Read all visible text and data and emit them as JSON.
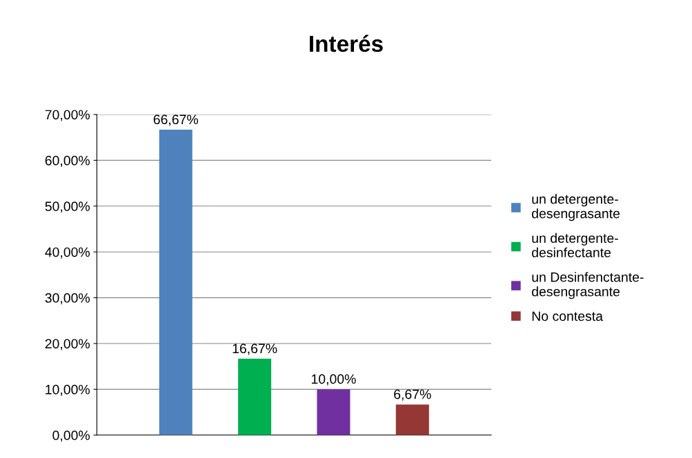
{
  "chart_data": {
    "type": "bar",
    "title": "Interés",
    "categories": [
      null
    ],
    "series": [
      {
        "name": "un detergente-\ndesengrasante",
        "color": "#4f81bd",
        "values": [
          66.67
        ],
        "value_labels": [
          "66,67%"
        ]
      },
      {
        "name": "un detergente-\ndesinfectante",
        "color": "#00b050",
        "values": [
          16.67
        ],
        "value_labels": [
          "16,67%"
        ]
      },
      {
        "name": "un Desinfenctante-\ndesengrasante",
        "color": "#7030a0",
        "values": [
          10.0
        ],
        "value_labels": [
          "10,00%"
        ]
      },
      {
        "name": "No contesta",
        "color": "#953735",
        "values": [
          6.67
        ],
        "value_labels": [
          "6,67%"
        ]
      }
    ],
    "ylim": [
      0,
      70
    ],
    "yticks": [
      {
        "value": 0,
        "label": "0,00%"
      },
      {
        "value": 10,
        "label": "10,00%"
      },
      {
        "value": 20,
        "label": "20,00%"
      },
      {
        "value": 30,
        "label": "30,00%"
      },
      {
        "value": 40,
        "label": "40,00%"
      },
      {
        "value": 50,
        "label": "50,00%"
      },
      {
        "value": 60,
        "label": "60,00%"
      },
      {
        "value": 70,
        "label": "70,00%"
      }
    ],
    "grid": "y",
    "legend": "right"
  }
}
